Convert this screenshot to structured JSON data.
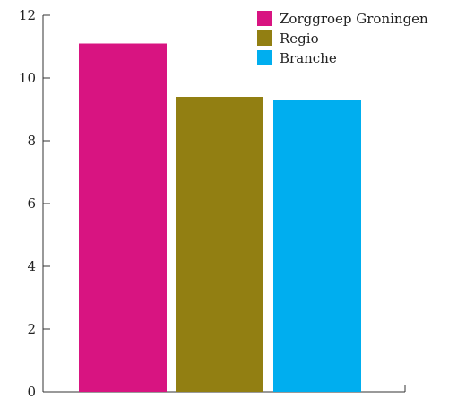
{
  "chart_data": {
    "type": "bar",
    "categories": [
      "Zorggroep Groningen",
      "Regio",
      "Branche"
    ],
    "values": [
      11.1,
      9.4,
      9.3
    ],
    "colors": [
      "#d81481",
      "#927f12",
      "#00aeef"
    ],
    "ylim": [
      0,
      12
    ],
    "yticks": [
      0,
      2,
      4,
      6,
      8,
      10,
      12
    ],
    "title": "",
    "xlabel": "",
    "ylabel": "",
    "legend": {
      "position": "top-right",
      "entries": [
        "Zorggroep Groningen",
        "Regio",
        "Branche"
      ]
    },
    "grid": false
  }
}
